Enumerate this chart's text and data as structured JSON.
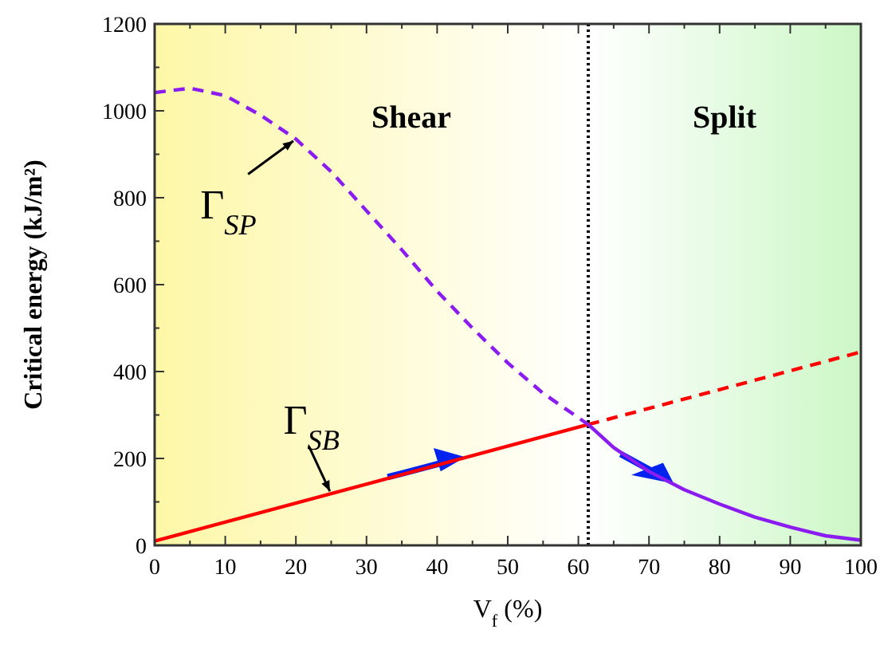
{
  "chart_data": {
    "type": "line",
    "xlabel": "V$_{f}$ (%)",
    "ylabel": "Critical energy (kJ/m²)",
    "xlim": [
      0,
      100
    ],
    "ylim": [
      0,
      1200
    ],
    "xticks": [
      0,
      {
        "value": 5,
        "label": null
      },
      10,
      {
        "value": 15,
        "label": null
      },
      20,
      {
        "value": 25,
        "label": null
      },
      30,
      {
        "value": 35,
        "label": null
      },
      40,
      {
        "value": 45,
        "label": null
      },
      50,
      {
        "value": 55,
        "label": null
      },
      60,
      {
        "value": 65,
        "label": null
      },
      70,
      {
        "value": 75,
        "label": null
      },
      80,
      {
        "value": 85,
        "label": null
      },
      90,
      {
        "value": 95,
        "label": null
      },
      100
    ],
    "yticks": [
      0,
      {
        "value": 100,
        "label": null
      },
      200,
      {
        "value": 300,
        "label": null
      },
      400,
      {
        "value": 500,
        "label": null
      },
      600,
      {
        "value": 700,
        "label": null
      },
      800,
      {
        "value": 900,
        "label": null
      },
      1000,
      {
        "value": 1100,
        "label": null
      },
      1200
    ],
    "series": [
      {
        "color": "#ff0000",
        "line_style": "solid",
        "x": [
          0,
          61.4
        ],
        "values": [
          10,
          278
        ]
      },
      {
        "color": "#ff0000",
        "line_style": "dashed",
        "x": [
          61.4,
          100
        ],
        "values": [
          278,
          445
        ]
      },
      {
        "color": "#8b1cf0",
        "line_style": "dashed",
        "x": [
          0,
          5,
          10,
          15,
          20,
          25,
          30,
          35,
          40,
          45,
          50,
          55,
          61.4
        ],
        "values": [
          1042,
          1052,
          1035,
          990,
          935,
          860,
          770,
          680,
          585,
          500,
          420,
          350,
          278
        ]
      },
      {
        "color": "#8b1cf0",
        "line_style": "solid",
        "x": [
          61.4,
          65,
          70,
          75,
          80,
          85,
          90,
          95,
          100
        ],
        "values": [
          278,
          225,
          170,
          128,
          95,
          65,
          42,
          22,
          12
        ]
      }
    ],
    "bands": [
      {
        "axis": "x",
        "from": 0,
        "to": 61.4,
        "label": "Shear",
        "color": "#fdf7a6"
      },
      {
        "axis": "x",
        "from": 61.4,
        "to": 100,
        "label": "Split",
        "color": "#ccf7c6"
      }
    ],
    "ref_lines": [
      {
        "axis": "x",
        "value": 61.4,
        "color": "#000000",
        "line_style": "dotted"
      }
    ],
    "annotations": [
      {
        "text": "Γ$_{SP}$",
        "x": 20,
        "y": 935
      },
      {
        "text": "Γ$_{SB}$",
        "x": 25,
        "y": 118
      }
    ],
    "grid": false,
    "marker": "none"
  }
}
